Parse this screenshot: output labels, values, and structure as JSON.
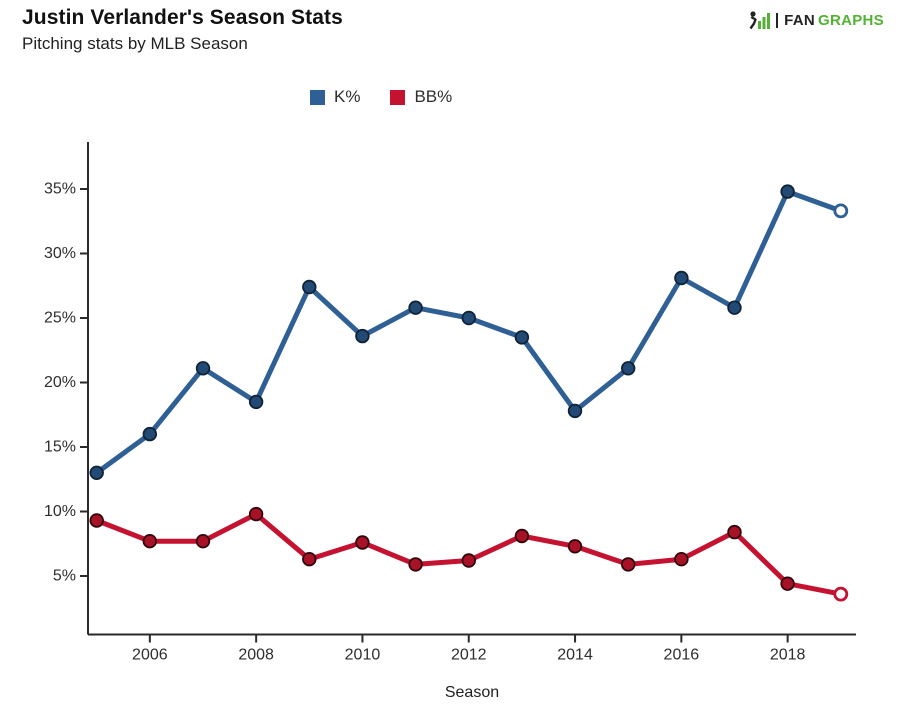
{
  "header": {
    "title": "Justin Verlander's Season Stats",
    "subtitle": "Pitching stats by MLB Season"
  },
  "logo": {
    "text_dark": "FAN",
    "text_green": "GRAPHS",
    "green": "#53b234",
    "dark": "#232323"
  },
  "legend": {
    "items": [
      {
        "label": "K%",
        "color": "#2f6095"
      },
      {
        "label": "BB%",
        "color": "#c41230"
      }
    ]
  },
  "chart_data": {
    "type": "line",
    "title": "Justin Verlander's Season Stats",
    "subtitle": "Pitching stats by MLB Season",
    "xlabel": "Season",
    "ylabel": "",
    "x": [
      2005,
      2006,
      2007,
      2008,
      2009,
      2010,
      2011,
      2012,
      2013,
      2014,
      2015,
      2016,
      2017,
      2018,
      2019
    ],
    "series": [
      {
        "name": "K%",
        "color": "#2f6095",
        "marker_fill": "#234a74",
        "marker_edge": "#0f2236",
        "values": [
          13.0,
          16.0,
          21.1,
          18.5,
          27.4,
          23.6,
          25.8,
          25.0,
          23.5,
          17.8,
          21.1,
          28.1,
          25.8,
          34.8,
          33.3
        ],
        "last_point_open": true
      },
      {
        "name": "BB%",
        "color": "#c41230",
        "marker_fill": "#a81226",
        "marker_edge": "#30060e",
        "values": [
          9.3,
          7.7,
          7.7,
          9.8,
          6.3,
          7.6,
          5.9,
          6.2,
          8.1,
          7.3,
          5.9,
          6.3,
          8.4,
          4.4,
          3.6
        ],
        "last_point_open": true
      }
    ],
    "x_ticks": [
      2006,
      2008,
      2010,
      2012,
      2014,
      2016,
      2018
    ],
    "y_ticks": [
      5,
      10,
      15,
      20,
      25,
      30,
      35
    ],
    "y_tick_suffix": "%",
    "xlim": [
      2004.8,
      2019.4
    ],
    "ylim": [
      0.5,
      38.5
    ],
    "grid": false,
    "legend_position": "top-center"
  }
}
